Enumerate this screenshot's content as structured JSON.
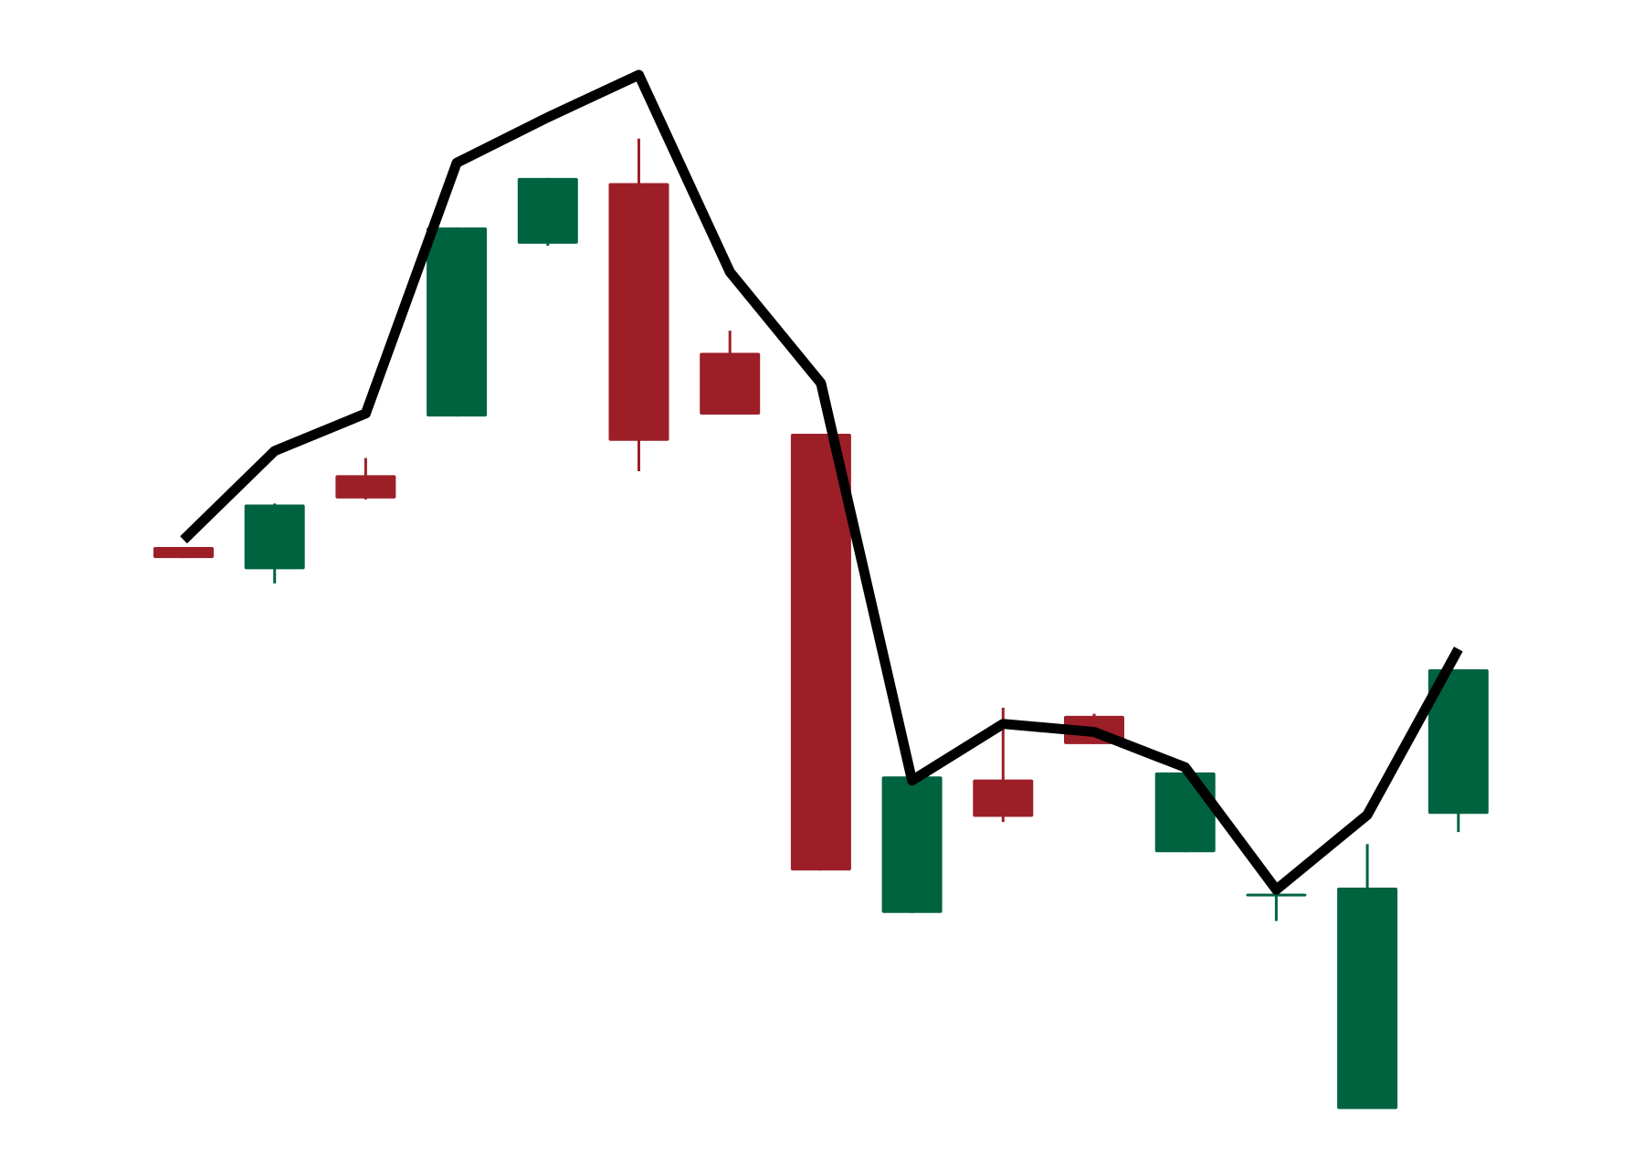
{
  "chart_data": {
    "type": "candlestick",
    "title": "",
    "xlabel": "",
    "ylabel": "",
    "axes_visible": false,
    "grid": false,
    "legend": "none",
    "ylim": [
      0,
      100
    ],
    "colors": {
      "up": "#006340",
      "down": "#9c1f28",
      "line": "#000000"
    },
    "candles": [
      {
        "open": 53.3,
        "high": 53.3,
        "low": 52.2,
        "close": 52.2
      },
      {
        "open": 51.1,
        "high": 57.6,
        "low": 49.7,
        "close": 57.5
      },
      {
        "open": 60.4,
        "high": 62.1,
        "low": 58.0,
        "close": 58.1
      },
      {
        "open": 66.2,
        "high": 84.9,
        "low": 66.2,
        "close": 84.9
      },
      {
        "open": 83.3,
        "high": 89.8,
        "low": 83.1,
        "close": 89.8
      },
      {
        "open": 89.3,
        "high": 93.7,
        "low": 60.8,
        "close": 63.8
      },
      {
        "open": 72.5,
        "high": 74.7,
        "low": 66.4,
        "close": 66.4
      },
      {
        "open": 64.5,
        "high": 64.5,
        "low": 21.3,
        "close": 21.3
      },
      {
        "open": 17.1,
        "high": 30.6,
        "low": 17.1,
        "close": 30.6
      },
      {
        "open": 30.3,
        "high": 37.4,
        "low": 26.1,
        "close": 26.6
      },
      {
        "open": 36.6,
        "high": 36.8,
        "low": 33.8,
        "close": 33.8
      },
      {
        "open": 23.1,
        "high": 31.0,
        "low": 23.1,
        "close": 31.0
      },
      {
        "open": 19.0,
        "high": 19.0,
        "low": 16.3,
        "close": 19.0
      },
      {
        "open": -2.3,
        "high": 23.9,
        "low": -2.3,
        "close": 19.6
      },
      {
        "open": 26.9,
        "high": 41.2,
        "low": 25.1,
        "close": 41.2
      }
    ],
    "line": [
      54.0,
      62.8,
      66.5,
      91.3,
      95.8,
      100.0,
      80.5,
      69.5,
      30.2,
      35.8,
      35.0,
      31.5,
      19.4,
      26.8,
      43.2
    ]
  }
}
